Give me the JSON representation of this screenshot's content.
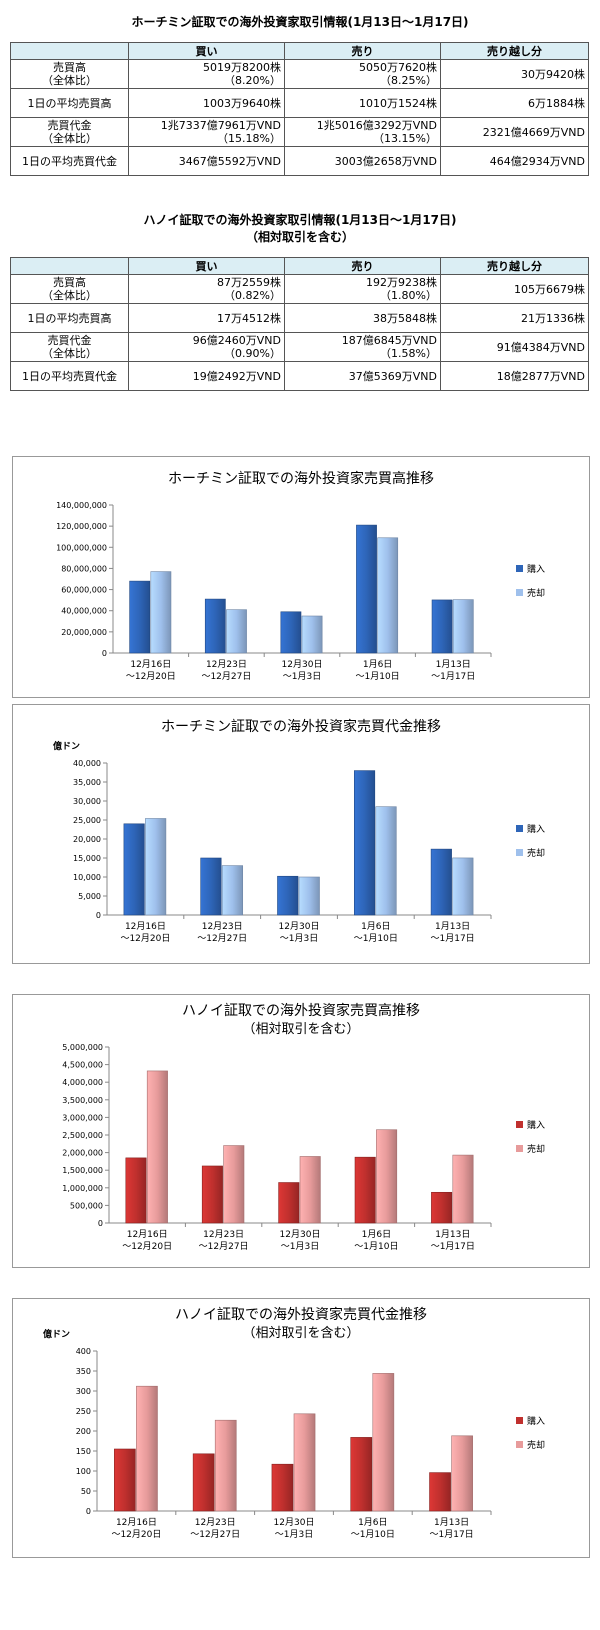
{
  "hcm_table": {
    "title": "ホーチミン証取での海外投資家取引情報(1月13日～1月17日)",
    "headers": [
      "",
      "買い",
      "売り",
      "売り越し分"
    ],
    "rows": [
      {
        "label": "売買高",
        "label2": "（全体比）",
        "buy": "5019万8200株",
        "buy_pct": "（8.20%）",
        "sell": "5050万7620株",
        "sell_pct": "（8.25%）",
        "net": "30万9420株"
      },
      {
        "label": "1日の平均売買高",
        "label2": "",
        "buy": "1003万9640株",
        "buy_pct": "",
        "sell": "1010万1524株",
        "sell_pct": "",
        "net": "6万1884株"
      },
      {
        "label": "売買代金",
        "label2": "（全体比）",
        "buy": "1兆7337億7961万VND",
        "buy_pct": "（15.18%）",
        "sell": "1兆5016億3292万VND",
        "sell_pct": "（13.15%）",
        "net": "2321億4669万VND"
      },
      {
        "label": "1日の平均売買代金",
        "label2": "",
        "buy": "3467億5592万VND",
        "buy_pct": "",
        "sell": "3003億2658万VND",
        "sell_pct": "",
        "net": "464億2934万VND"
      }
    ]
  },
  "hn_table": {
    "title": "ハノイ証取での海外投資家取引情報(1月13日～1月17日)",
    "title2": "（相対取引を含む）",
    "headers": [
      "",
      "買い",
      "売り",
      "売り越し分"
    ],
    "rows": [
      {
        "label": "売買高",
        "label2": "（全体比）",
        "buy": "87万2559株",
        "buy_pct": "（0.82%）",
        "sell": "192万9238株",
        "sell_pct": "（1.80%）",
        "net": "105万6679株"
      },
      {
        "label": "1日の平均売買高",
        "label2": "",
        "buy": "17万4512株",
        "buy_pct": "",
        "sell": "38万5848株",
        "sell_pct": "",
        "net": "21万1336株"
      },
      {
        "label": "売買代金",
        "label2": "（全体比）",
        "buy": "96億2460万VND",
        "buy_pct": "（0.90%）",
        "sell": "187億6845万VND",
        "sell_pct": "（1.58%）",
        "net": "91億4384万VND"
      },
      {
        "label": "1日の平均売買代金",
        "label2": "",
        "buy": "19億2492万VND",
        "buy_pct": "",
        "sell": "37億5369万VND",
        "sell_pct": "",
        "net": "18億2877万VND"
      }
    ]
  },
  "chart_data": [
    {
      "type": "bar",
      "title": "ホーチミン証取での海外投資家売買高推移",
      "subtitle": "",
      "ylabel": "",
      "categories": [
        [
          "12月16日",
          "～12月20日"
        ],
        [
          "12月23日",
          "～12月27日"
        ],
        [
          "12月30日",
          "～1月3日"
        ],
        [
          "1月6日",
          "～1月10日"
        ],
        [
          "1月13日",
          "～1月17日"
        ]
      ],
      "series": [
        {
          "name": "購入",
          "values": [
            68000000,
            51000000,
            39000000,
            121000000,
            50198200
          ]
        },
        {
          "name": "売却",
          "values": [
            77000000,
            41000000,
            35000000,
            109000000,
            50507620
          ]
        }
      ],
      "ylim": [
        0,
        140000000
      ],
      "yticks": [
        0,
        20000000,
        40000000,
        60000000,
        80000000,
        100000000,
        120000000,
        140000000
      ],
      "ytick_labels": [
        "0",
        "20,000,000",
        "40,000,000",
        "60,000,000",
        "80,000,000",
        "100,000,000",
        "120,000,000",
        "140,000,000"
      ],
      "colors": {
        "buy": "#2e65b8",
        "sell": "#9fc0ec"
      },
      "legend": "right",
      "grid": false
    },
    {
      "type": "bar",
      "title": "ホーチミン証取での海外投資家売買代金推移",
      "subtitle": "",
      "ylabel": "億ドン",
      "categories": [
        [
          "12月16日",
          "～12月20日"
        ],
        [
          "12月23日",
          "～12月27日"
        ],
        [
          "12月30日",
          "～1月3日"
        ],
        [
          "1月6日",
          "～1月10日"
        ],
        [
          "1月13日",
          "～1月17日"
        ]
      ],
      "series": [
        {
          "name": "購入",
          "values": [
            24000,
            15000,
            10200,
            38000,
            17338
          ]
        },
        {
          "name": "売却",
          "values": [
            25400,
            13000,
            10000,
            28500,
            15016
          ]
        }
      ],
      "ylim": [
        0,
        40000
      ],
      "yticks": [
        0,
        5000,
        10000,
        15000,
        20000,
        25000,
        30000,
        35000,
        40000
      ],
      "ytick_labels": [
        "0",
        "5,000",
        "10,000",
        "15,000",
        "20,000",
        "25,000",
        "30,000",
        "35,000",
        "40,000"
      ],
      "colors": {
        "buy": "#2e65b8",
        "sell": "#9fc0ec"
      },
      "legend": "right",
      "grid": false
    },
    {
      "type": "bar",
      "title": "ハノイ証取での海外投資家売買高推移",
      "subtitle": "（相対取引を含む）",
      "ylabel": "",
      "categories": [
        [
          "12月16日",
          "～12月20日"
        ],
        [
          "12月23日",
          "～12月27日"
        ],
        [
          "12月30日",
          "～1月3日"
        ],
        [
          "1月6日",
          "～1月10日"
        ],
        [
          "1月13日",
          "～1月17日"
        ]
      ],
      "series": [
        {
          "name": "購入",
          "values": [
            1850000,
            1620000,
            1150000,
            1870000,
            872559
          ]
        },
        {
          "name": "売却",
          "values": [
            4320000,
            2200000,
            1890000,
            2650000,
            1929238
          ]
        }
      ],
      "ylim": [
        0,
        5000000
      ],
      "yticks": [
        0,
        500000,
        1000000,
        1500000,
        2000000,
        2500000,
        3000000,
        3500000,
        4000000,
        4500000,
        5000000
      ],
      "ytick_labels": [
        "0",
        "500,000",
        "1,000,000",
        "1,500,000",
        "2,000,000",
        "2,500,000",
        "3,000,000",
        "3,500,000",
        "4,000,000",
        "4,500,000",
        "5,000,000"
      ],
      "colors": {
        "buy": "#c0302e",
        "sell": "#e79b9b"
      },
      "legend": "right",
      "grid": false
    },
    {
      "type": "bar",
      "title": "ハノイ証取での海外投資家売買代金推移",
      "subtitle": "（相対取引を含む）",
      "ylabel": "億ドン",
      "categories": [
        [
          "12月16日",
          "～12月20日"
        ],
        [
          "12月23日",
          "～12月27日"
        ],
        [
          "12月30日",
          "～1月3日"
        ],
        [
          "1月6日",
          "～1月10日"
        ],
        [
          "1月13日",
          "～1月17日"
        ]
      ],
      "series": [
        {
          "name": "購入",
          "values": [
            155,
            143,
            117,
            184,
            96
          ]
        },
        {
          "name": "売却",
          "values": [
            312,
            227,
            243,
            344,
            188
          ]
        }
      ],
      "ylim": [
        0,
        400
      ],
      "yticks": [
        0,
        50,
        100,
        150,
        200,
        250,
        300,
        350,
        400
      ],
      "ytick_labels": [
        "0",
        "50",
        "100",
        "150",
        "200",
        "250",
        "300",
        "350",
        "400"
      ],
      "colors": {
        "buy": "#c0302e",
        "sell": "#e79b9b"
      },
      "legend": "right",
      "grid": false
    }
  ]
}
